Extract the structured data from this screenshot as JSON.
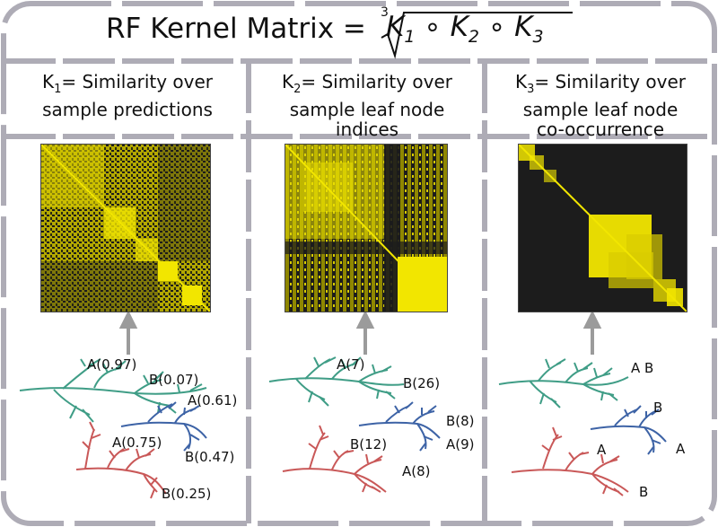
{
  "title": {
    "main": "RF Kernel Matrix =",
    "root_index": "3",
    "formula_terms": [
      "K",
      "1",
      "∘",
      "K",
      "2",
      "∘",
      "K",
      "3"
    ]
  },
  "panels": [
    {
      "head_prefix": "K",
      "head_sub": "1",
      "head_rest": "= Similarity over",
      "head_line2": "sample predictions",
      "head_line3": "",
      "leaf_labels": {
        "teal_top": "A(0.97)",
        "teal_right": "B(0.07)",
        "blue_top": "A(0.61)",
        "red_top": "A(0.75)",
        "blue_bottom": "B(0.47)",
        "red_bottom": "B(0.25)"
      }
    },
    {
      "head_prefix": "K",
      "head_sub": "2",
      "head_rest": "= Similarity over",
      "head_line2": "sample leaf node",
      "head_line3": "indices",
      "leaf_labels": {
        "teal_top": "A(7)",
        "teal_right": "B(26)",
        "blue_top": "B(8)",
        "red_top": "B(12)",
        "blue_bottom": "A(9)",
        "red_bottom": "A(8)"
      }
    },
    {
      "head_prefix": "K",
      "head_sub": "3",
      "head_rest": "= Similarity over",
      "head_line2": "sample leaf node",
      "head_line3": "co-occurrence",
      "leaf_labels": {
        "teal_top": "A B",
        "blue_top": "B",
        "blue_bottom": "A",
        "red_top": "A",
        "red_bottom": "B"
      }
    }
  ],
  "colors": {
    "frame": "#aeacb6",
    "yellow": "#f2e600",
    "dark": "#1c1c1c",
    "teal": "#3f9d86",
    "blue": "#3d63a6",
    "red": "#c95858",
    "arrow": "#9b9b9b"
  }
}
